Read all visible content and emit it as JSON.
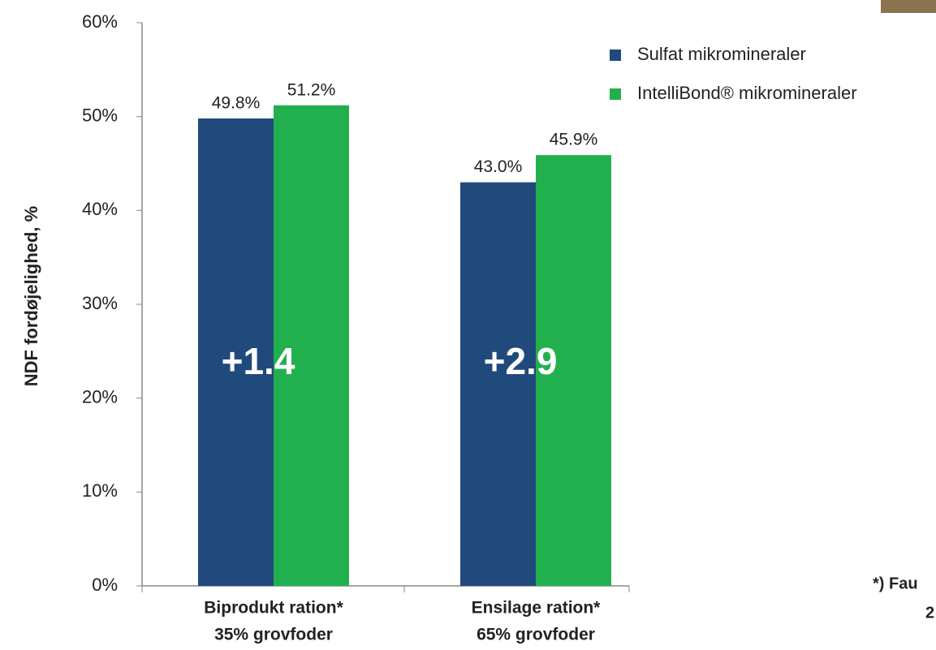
{
  "chart_data": {
    "type": "bar",
    "y_label": "NDF fordøjelighed, %",
    "categories": [
      [
        "Biprodukt ration*",
        "35% grovfoder"
      ],
      [
        "Ensilage ration*",
        "65% grovfoder"
      ]
    ],
    "series": [
      {
        "name": "Sulfat mikromineraler",
        "color": "#214a7c",
        "values": [
          49.8,
          43.0
        ],
        "value_labels": [
          "49.8%",
          "43.0%"
        ]
      },
      {
        "name": "IntelliBond® mikromineraler",
        "color": "#22b04e",
        "values": [
          51.2,
          45.9
        ],
        "value_labels": [
          "51.2%",
          "45.9%"
        ]
      }
    ],
    "annotations": [
      "+1.4",
      "+2.9"
    ],
    "ylim": [
      0,
      60
    ],
    "yticks": [
      {
        "value": 0,
        "label": "0%"
      },
      {
        "value": 10,
        "label": "10%"
      },
      {
        "value": 20,
        "label": "20%"
      },
      {
        "value": 30,
        "label": "30%"
      },
      {
        "value": 40,
        "label": "40%"
      },
      {
        "value": 50,
        "label": "50%"
      },
      {
        "value": 60,
        "label": "60%"
      }
    ],
    "footnote": [
      "*) Fau",
      "2"
    ]
  }
}
